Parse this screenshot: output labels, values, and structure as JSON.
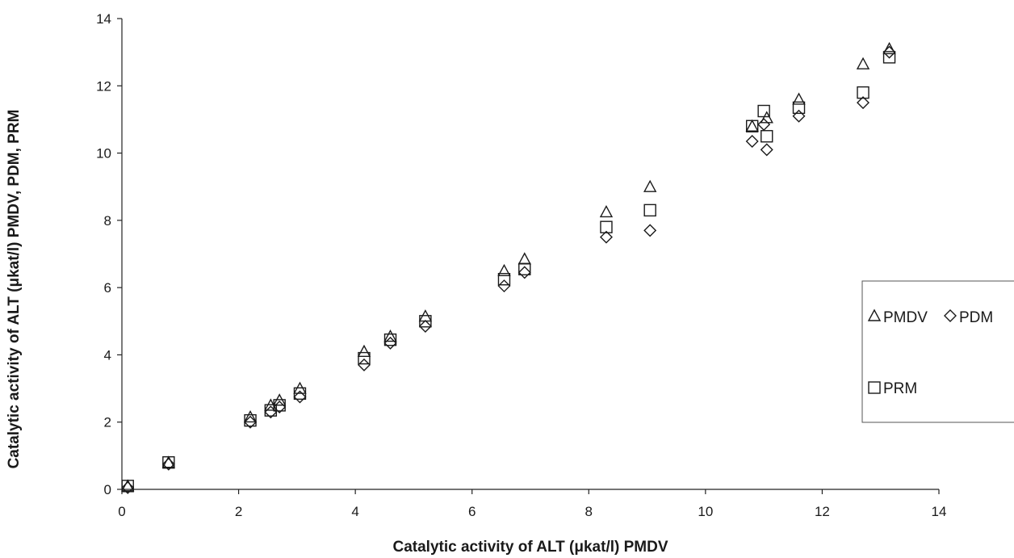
{
  "chart_data": {
    "type": "scatter",
    "xlabel": "Catalytic activity of ALT (μkat/l) PMDV",
    "ylabel": "Catalytic activity of ALT (μkat/l) PMDV, PDM, PRM",
    "xlim": [
      0,
      14
    ],
    "ylim": [
      0,
      14
    ],
    "x_ticks": [
      "0",
      "2",
      "4",
      "6",
      "8",
      "10",
      "12",
      "14"
    ],
    "y_ticks": [
      "0",
      "2",
      "4",
      "6",
      "8",
      "10",
      "12",
      "14"
    ],
    "grid": false,
    "legend_position": "right",
    "series": [
      {
        "name": "PMDV",
        "marker": "triangle",
        "points": [
          [
            0.1,
            0.1
          ],
          [
            0.8,
            0.8
          ],
          [
            2.2,
            2.15
          ],
          [
            2.55,
            2.5
          ],
          [
            2.7,
            2.65
          ],
          [
            3.05,
            3.0
          ],
          [
            4.15,
            4.1
          ],
          [
            4.6,
            4.55
          ],
          [
            5.2,
            5.15
          ],
          [
            6.55,
            6.5
          ],
          [
            6.9,
            6.85
          ],
          [
            8.3,
            8.25
          ],
          [
            9.05,
            9.0
          ],
          [
            10.8,
            10.8
          ],
          [
            11.05,
            11.05
          ],
          [
            11.6,
            11.6
          ],
          [
            12.7,
            12.65
          ],
          [
            13.15,
            13.1
          ]
        ]
      },
      {
        "name": "PDM",
        "marker": "diamond",
        "points": [
          [
            0.1,
            0.05
          ],
          [
            0.8,
            0.75
          ],
          [
            2.2,
            2.0
          ],
          [
            2.55,
            2.3
          ],
          [
            2.7,
            2.45
          ],
          [
            3.05,
            2.75
          ],
          [
            4.15,
            3.7
          ],
          [
            4.6,
            4.35
          ],
          [
            5.2,
            4.85
          ],
          [
            6.55,
            6.05
          ],
          [
            6.9,
            6.45
          ],
          [
            8.3,
            7.5
          ],
          [
            9.05,
            7.7
          ],
          [
            10.8,
            10.35
          ],
          [
            11.0,
            10.85
          ],
          [
            11.05,
            10.1
          ],
          [
            11.6,
            11.1
          ],
          [
            12.7,
            11.5
          ],
          [
            13.15,
            13.0
          ]
        ]
      },
      {
        "name": "PRM",
        "marker": "square",
        "points": [
          [
            0.1,
            0.1
          ],
          [
            0.8,
            0.8
          ],
          [
            2.2,
            2.05
          ],
          [
            2.55,
            2.35
          ],
          [
            2.7,
            2.5
          ],
          [
            3.05,
            2.85
          ],
          [
            4.15,
            3.9
          ],
          [
            4.6,
            4.45
          ],
          [
            5.2,
            5.0
          ],
          [
            6.55,
            6.25
          ],
          [
            6.9,
            6.55
          ],
          [
            8.3,
            7.8
          ],
          [
            9.05,
            8.3
          ],
          [
            10.8,
            10.8
          ],
          [
            11.0,
            11.25
          ],
          [
            11.05,
            10.5
          ],
          [
            11.6,
            11.35
          ],
          [
            12.7,
            11.8
          ],
          [
            13.15,
            12.85
          ]
        ]
      }
    ],
    "legend": [
      {
        "label": "PMDV",
        "marker": "triangle"
      },
      {
        "label": "PDM",
        "marker": "diamond"
      },
      {
        "label": "PRM",
        "marker": "square"
      }
    ]
  }
}
